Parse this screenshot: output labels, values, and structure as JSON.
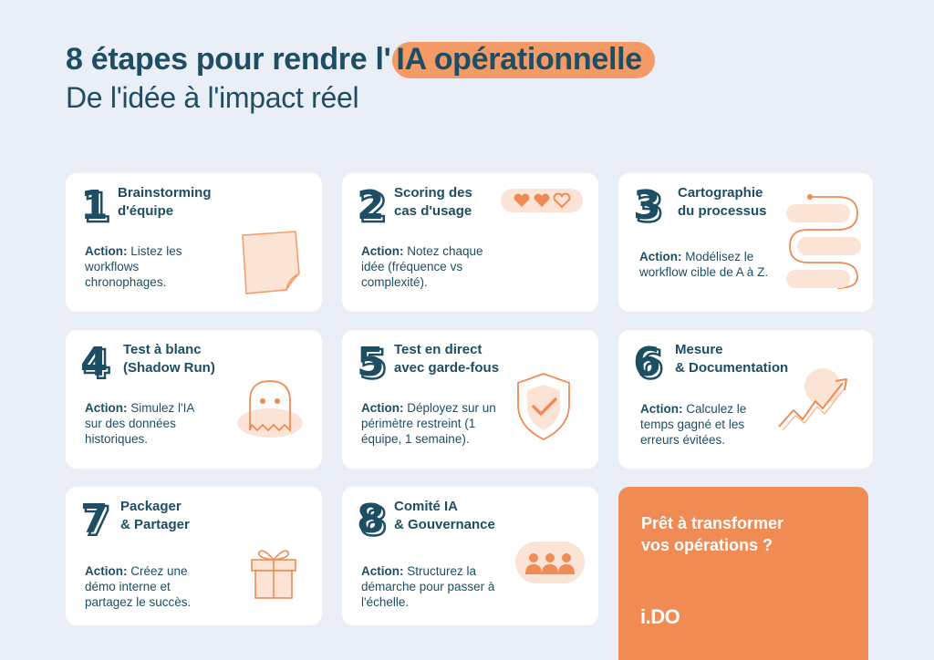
{
  "header": {
    "title_prefix": "8 étapes pour rendre l'",
    "title_highlight": "IA opérationnelle",
    "subtitle": "De l'idée à l'impact réel"
  },
  "steps": [
    {
      "number": "1",
      "title_line1": "Brainstorming",
      "title_line2": "d'équipe",
      "action_label": "Action:",
      "action_text": " Listez les workflows chronophages.",
      "icon": "sticky-note-icon"
    },
    {
      "number": "2",
      "title_line1": "Scoring des",
      "title_line2": "cas d'usage",
      "action_label": "Action:",
      "action_text": " Notez chaque idée (fréquence vs complexité).",
      "icon": "hearts-rating-icon"
    },
    {
      "number": "3",
      "title_line1": "Cartographie",
      "title_line2": "du processus",
      "action_label": "Action:",
      "action_text": " Modélisez le workflow cible de A à Z.",
      "icon": "process-flow-icon"
    },
    {
      "number": "4",
      "title_line1": "Test à blanc",
      "title_line2": "(Shadow Run)",
      "action_label": "Action:",
      "action_text": " Simulez l'IA sur des données historiques.",
      "icon": "ghost-icon"
    },
    {
      "number": "5",
      "title_line1": "Test en direct",
      "title_line2": "avec garde-fous",
      "action_label": "Action:",
      "action_text": " Déployez sur un périmètre restreint (1 équipe, 1 semaine).",
      "icon": "shield-check-icon"
    },
    {
      "number": "6",
      "title_line1": "Mesure",
      "title_line2": "& Documentation",
      "action_label": "Action:",
      "action_text": " Calculez le temps gagné et les erreurs évitées.",
      "icon": "trend-up-icon"
    },
    {
      "number": "7",
      "title_line1": "Packager",
      "title_line2": "& Partager",
      "action_label": "Action:",
      "action_text": " Créez une démo interne et partagez le succès.",
      "icon": "gift-icon"
    },
    {
      "number": "8",
      "title_line1": "Comité IA",
      "title_line2": "& Gouvernance",
      "action_label": "Action:",
      "action_text": " Structurez la démarche pour passer à l'échelle.",
      "icon": "team-icon"
    }
  ],
  "cta": {
    "line1": "Prêt à transformer",
    "line2": "vos opérations ?",
    "logo": "i.DO"
  },
  "colors": {
    "background": "#eaeef7",
    "navy": "#1d4e63",
    "orange": "#f08b54",
    "light_orange": "#fbe3d6"
  }
}
